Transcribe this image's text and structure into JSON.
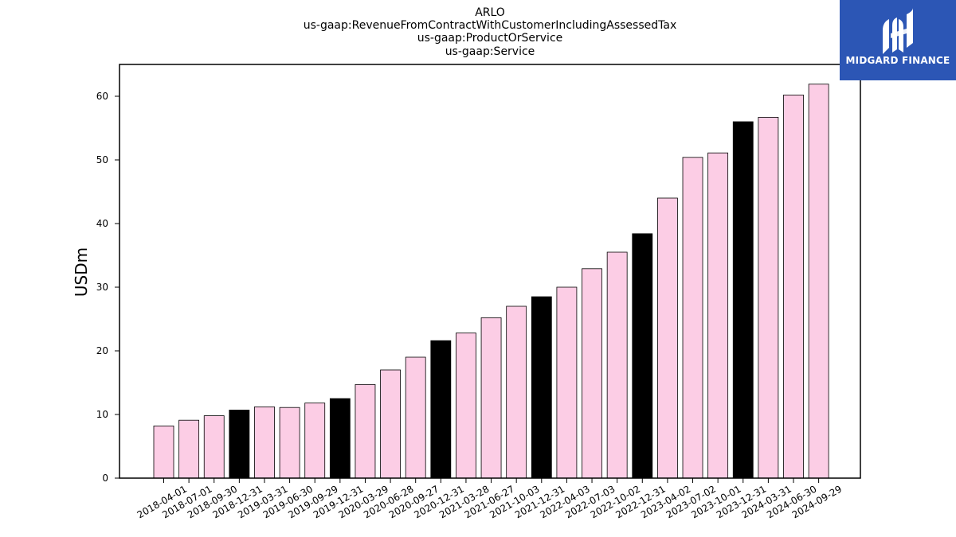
{
  "chart_data": {
    "type": "bar",
    "title_lines": [
      "ARLO",
      "us-gaap:RevenueFromContractWithCustomerIncludingAssessedTax",
      "us-gaap:ProductOrService",
      "us-gaap:Service"
    ],
    "ylabel": "USDm",
    "xlabel": "",
    "ylim": [
      0,
      65
    ],
    "yticks": [
      0,
      10,
      20,
      30,
      40,
      50,
      60
    ],
    "grid": false,
    "categories": [
      "2018-04-01",
      "2018-07-01",
      "2018-09-30",
      "2018-12-31",
      "2019-03-31",
      "2019-06-30",
      "2019-09-29",
      "2019-12-31",
      "2020-03-29",
      "2020-06-28",
      "2020-09-27",
      "2020-12-31",
      "2021-03-28",
      "2021-06-27",
      "2021-10-03",
      "2021-12-31",
      "2022-04-03",
      "2022-07-03",
      "2022-10-02",
      "2022-12-31",
      "2023-04-02",
      "2023-07-02",
      "2023-10-01",
      "2023-12-31",
      "2024-03-31",
      "2024-06-30",
      "2024-09-29"
    ],
    "values": [
      8.2,
      9.1,
      9.8,
      10.7,
      11.2,
      11.1,
      11.8,
      12.5,
      14.7,
      17.0,
      19.0,
      21.6,
      22.8,
      25.2,
      27.0,
      28.5,
      30.0,
      32.9,
      35.5,
      38.4,
      44.0,
      50.4,
      51.1,
      56.0,
      56.7,
      60.2,
      61.9
    ],
    "colors": {
      "quarter": "#fccde5",
      "year_end": "#000000",
      "edge": "#000000"
    }
  },
  "logo": {
    "text": "MIDGARD FINANCE",
    "icon": "midgard-logo-icon",
    "background": "#2c56b5"
  }
}
